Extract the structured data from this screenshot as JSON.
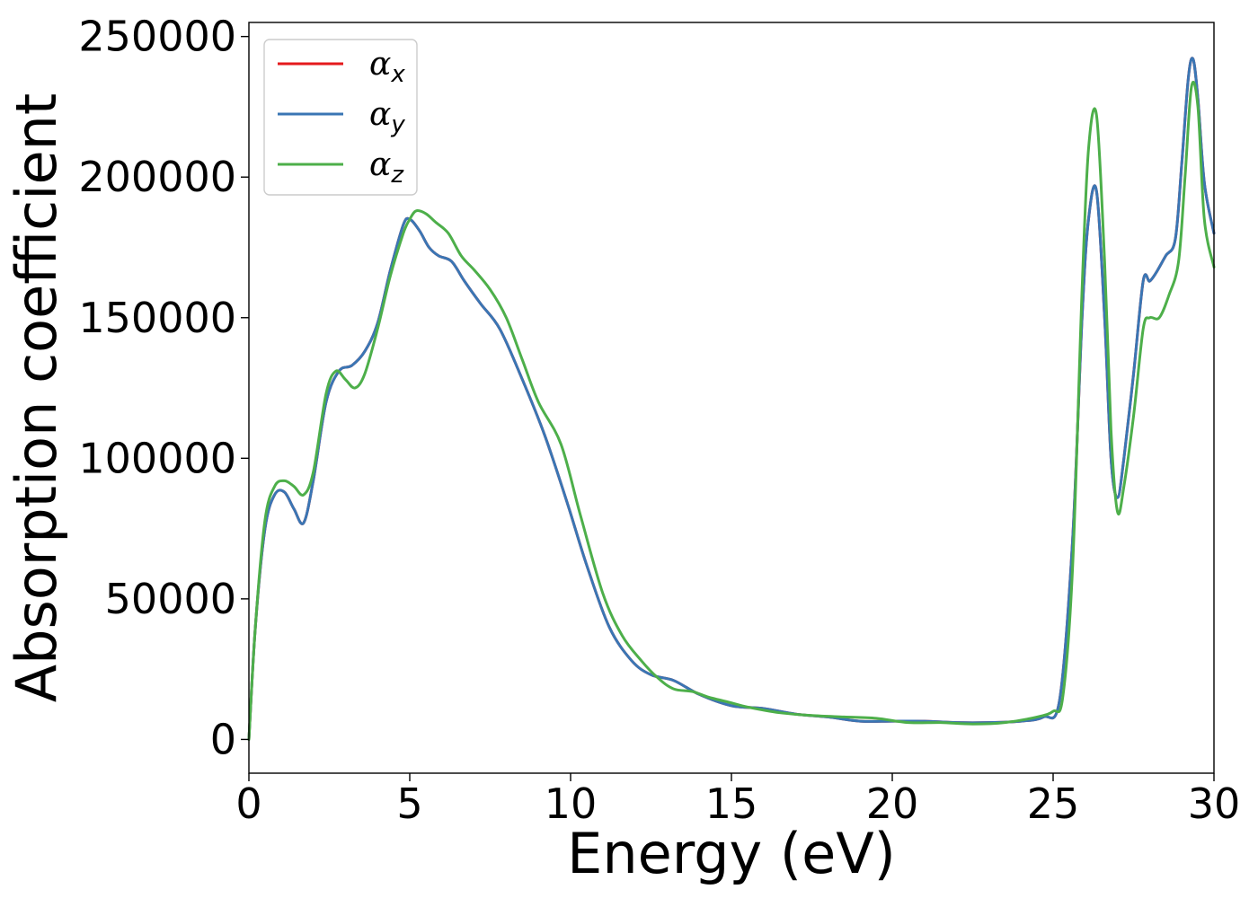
{
  "chart_data": {
    "type": "line",
    "title": "",
    "xlabel": "Energy (eV)",
    "ylabel": "Absorption coefficient",
    "xlim": [
      0,
      30
    ],
    "ylim": [
      -12000,
      255000
    ],
    "xticks": [
      0,
      5,
      10,
      15,
      20,
      25,
      30
    ],
    "xtick_labels": [
      "0",
      "5",
      "10",
      "15",
      "20",
      "25",
      "30"
    ],
    "yticks": [
      0,
      50000,
      100000,
      150000,
      200000,
      250000
    ],
    "ytick_labels": [
      "0",
      "50000",
      "100000",
      "150000",
      "200000",
      "250000"
    ],
    "grid": false,
    "legend_position": "top-left",
    "series": [
      {
        "name": "α_x",
        "legend_symbol": "α",
        "legend_subscript": "x",
        "color": "#e41a1c",
        "x": [
          0,
          0.2,
          0.5,
          0.8,
          1.1,
          1.4,
          1.7,
          2.0,
          2.4,
          2.8,
          3.2,
          3.6,
          4.0,
          4.4,
          4.8,
          5.0,
          5.3,
          5.6,
          5.9,
          6.3,
          6.7,
          7.2,
          7.8,
          8.5,
          9.2,
          9.9,
          10.5,
          11.2,
          11.9,
          12.5,
          13.2,
          14.0,
          15.0,
          16.0,
          17.0,
          18.0,
          19.0,
          20.0,
          21.0,
          22.0,
          23.0,
          24.0,
          24.7,
          25.2,
          25.6,
          25.9,
          26.1,
          26.35,
          26.6,
          26.8,
          27.0,
          27.2,
          27.5,
          27.8,
          28.0,
          28.2,
          28.5,
          28.8,
          29.0,
          29.2,
          29.35,
          29.5,
          29.7,
          30.0
        ],
        "y": [
          0,
          40000,
          75000,
          87000,
          88000,
          82000,
          77000,
          92000,
          120000,
          131000,
          133000,
          138000,
          148000,
          167000,
          183000,
          185000,
          181000,
          175000,
          172000,
          170000,
          163000,
          155000,
          146000,
          128000,
          108000,
          84000,
          62000,
          40000,
          28000,
          23000,
          21000,
          16000,
          12000,
          11000,
          9000,
          8000,
          6500,
          6500,
          6500,
          6000,
          6000,
          6500,
          8000,
          14000,
          70000,
          150000,
          185000,
          195000,
          150000,
          100000,
          86000,
          100000,
          130000,
          163000,
          163000,
          166000,
          172000,
          178000,
          205000,
          235000,
          242000,
          228000,
          198000,
          180000
        ]
      },
      {
        "name": "α_y",
        "legend_symbol": "α",
        "legend_subscript": "y",
        "color": "#3a76b4",
        "x": [
          0,
          0.2,
          0.5,
          0.8,
          1.1,
          1.4,
          1.7,
          2.0,
          2.4,
          2.8,
          3.2,
          3.6,
          4.0,
          4.4,
          4.8,
          5.0,
          5.3,
          5.6,
          5.9,
          6.3,
          6.7,
          7.2,
          7.8,
          8.5,
          9.2,
          9.9,
          10.5,
          11.2,
          11.9,
          12.5,
          13.2,
          14.0,
          15.0,
          16.0,
          17.0,
          18.0,
          19.0,
          20.0,
          21.0,
          22.0,
          23.0,
          24.0,
          24.7,
          25.2,
          25.6,
          25.9,
          26.1,
          26.35,
          26.6,
          26.8,
          27.0,
          27.2,
          27.5,
          27.8,
          28.0,
          28.2,
          28.5,
          28.8,
          29.0,
          29.2,
          29.35,
          29.5,
          29.7,
          30.0
        ],
        "y": [
          0,
          40000,
          75000,
          87000,
          88000,
          82000,
          77000,
          92000,
          120000,
          131000,
          133000,
          138000,
          148000,
          167000,
          183000,
          185000,
          181000,
          175000,
          172000,
          170000,
          163000,
          155000,
          146000,
          128000,
          108000,
          84000,
          62000,
          40000,
          28000,
          23000,
          21000,
          16000,
          12000,
          11000,
          9000,
          8000,
          6500,
          6500,
          6500,
          6000,
          6000,
          6500,
          8000,
          14000,
          70000,
          150000,
          185000,
          195000,
          150000,
          100000,
          86000,
          100000,
          130000,
          163000,
          163000,
          166000,
          172000,
          178000,
          205000,
          235000,
          242000,
          228000,
          198000,
          180000
        ]
      },
      {
        "name": "α_z",
        "legend_symbol": "α",
        "legend_subscript": "z",
        "color": "#4daf4a",
        "x": [
          0,
          0.2,
          0.5,
          0.8,
          1.1,
          1.4,
          1.7,
          2.0,
          2.4,
          2.7,
          3.0,
          3.3,
          3.6,
          4.0,
          4.4,
          4.8,
          5.0,
          5.2,
          5.5,
          5.8,
          6.2,
          6.6,
          7.0,
          7.5,
          8.0,
          8.5,
          9.0,
          9.7,
          10.3,
          11.0,
          11.6,
          12.2,
          12.7,
          13.2,
          13.8,
          14.3,
          15.0,
          15.5,
          16.5,
          17.5,
          18.5,
          19.5,
          20.5,
          21.5,
          22.5,
          23.5,
          24.5,
          25.0,
          25.3,
          25.6,
          25.9,
          26.1,
          26.35,
          26.6,
          26.8,
          27.0,
          27.2,
          27.5,
          27.8,
          28.0,
          28.3,
          28.6,
          28.9,
          29.1,
          29.3,
          29.5,
          29.7,
          30.0
        ],
        "y": [
          0,
          40000,
          78000,
          90000,
          92000,
          90000,
          87000,
          95000,
          123000,
          131000,
          128000,
          125000,
          130000,
          146000,
          165000,
          180000,
          185000,
          188000,
          187000,
          184000,
          180000,
          172000,
          167000,
          160000,
          150000,
          135000,
          120000,
          105000,
          80000,
          52000,
          37000,
          28000,
          22000,
          18000,
          17000,
          15000,
          13000,
          11500,
          9500,
          8500,
          8000,
          7500,
          6000,
          6000,
          5500,
          6000,
          8000,
          10000,
          15000,
          60000,
          160000,
          210000,
          222000,
          170000,
          110000,
          81000,
          90000,
          115000,
          146000,
          150000,
          150000,
          158000,
          170000,
          200000,
          232000,
          225000,
          185000,
          168000
        ]
      }
    ]
  }
}
